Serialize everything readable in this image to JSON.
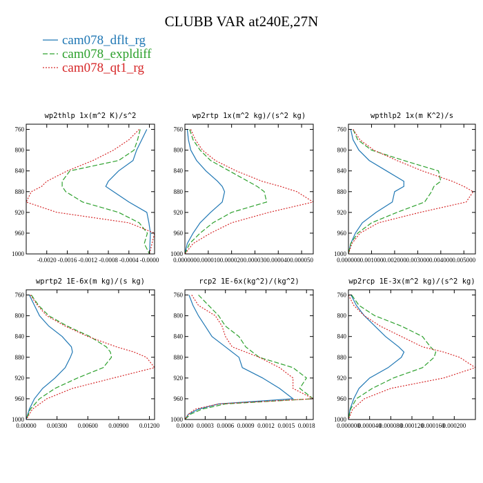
{
  "figure": {
    "title": "CLUBB VAR at240E,27N",
    "legend": [
      {
        "label": "cam078_dflt_rg",
        "color": "#1f77b4",
        "dash": "solid"
      },
      {
        "label": "cam078_expldiff",
        "color": "#2ca02c",
        "dash": "dashed"
      },
      {
        "label": "cam078_qt1_rg",
        "color": "#d62728",
        "dash": "dotted"
      }
    ]
  },
  "chart_data": [
    {
      "type": "line",
      "title": "wp2thlp  1x(m^2 K)/s^2",
      "xlim": [
        -0.0024,
        0.0001
      ],
      "ylim": [
        1000,
        750
      ],
      "x_ticks": [
        "-0.0020",
        "-0.0016",
        "-0.0012",
        "-0.0008",
        "-0.0004",
        "-0.0000"
      ],
      "x_tick_values": [
        -0.002,
        -0.0016,
        -0.0012,
        -0.0008,
        -0.0004,
        0.0
      ],
      "y": [
        760,
        780,
        800,
        820,
        840,
        860,
        870,
        880,
        900,
        920,
        940,
        960,
        980,
        1000
      ],
      "y_ticks": [
        "760",
        "800",
        "840",
        "880",
        "920",
        "960",
        "1000"
      ],
      "series": [
        {
          "name": "cam078_dflt_rg",
          "values": [
            -5e-05,
            -0.00015,
            -0.00025,
            -0.00032,
            -0.0006,
            -0.0008,
            -0.00085,
            -0.0007,
            -0.0004,
            -5e-05,
            -1e-05,
            2e-05,
            1e-05,
            0.0
          ]
        },
        {
          "name": "cam078_expldiff",
          "values": [
            -0.00018,
            -0.00023,
            -0.0003,
            -0.0006,
            -0.00155,
            -0.0017,
            -0.0017,
            -0.00163,
            -0.0013,
            -0.0006,
            -0.0002,
            -4e-05,
            -0.0001,
            0.0
          ]
        },
        {
          "name": "cam078_qt1_rg",
          "values": [
            -0.0002,
            -0.0004,
            -0.0007,
            -0.0011,
            -0.0016,
            -0.002,
            -0.0021,
            -0.0023,
            -0.0024,
            -0.0018,
            -0.0004,
            0.0001,
            5e-05,
            0.0
          ]
        }
      ]
    },
    {
      "type": "line",
      "title": "wp2rtp  1x(m^2 kg)/(s^2 kg)",
      "xlim": [
        0.0,
        5.5e-05
      ],
      "ylim": [
        1000,
        750
      ],
      "x_ticks": [
        "0.000000",
        "0.000010",
        "0.000020",
        "0.000030",
        "0.000040",
        "0.000050"
      ],
      "x_tick_values": [
        0.0,
        1e-05,
        2e-05,
        3e-05,
        4e-05,
        5e-05
      ],
      "y": [
        760,
        780,
        800,
        820,
        840,
        860,
        870,
        880,
        900,
        920,
        940,
        960,
        980,
        1000
      ],
      "y_ticks": [
        "760",
        "800",
        "840",
        "880",
        "920",
        "960",
        "1000"
      ],
      "series": [
        {
          "name": "cam078_dflt_rg",
          "values": [
            1e-06,
            1.5e-06,
            2.5e-06,
            5e-06,
            9e-06,
            1.4e-05,
            1.6e-05,
            1.7e-05,
            1.6e-05,
            1.1e-05,
            6.5e-06,
            3.5e-06,
            1e-06,
            0.0
          ]
        },
        {
          "name": "cam078_expldiff",
          "values": [
            2e-06,
            3.5e-06,
            6.5e-06,
            1.1e-05,
            1.9e-05,
            2.7e-05,
            3.1e-05,
            3.4e-05,
            3.5e-05,
            2e-05,
            1.2e-05,
            6.5e-06,
            2e-06,
            0.0
          ]
        },
        {
          "name": "cam078_qt1_rg",
          "values": [
            2.5e-06,
            4.5e-06,
            7.5e-06,
            1.3e-05,
            2.2e-05,
            3.3e-05,
            4.1e-05,
            4.8e-05,
            5.5e-05,
            3.6e-05,
            2e-05,
            1.1e-05,
            3.5e-06,
            0.0
          ]
        }
      ]
    },
    {
      "type": "line",
      "title": "wpthlp2  1x(m K^2)/s",
      "xlim": [
        0.0,
        0.0055
      ],
      "ylim": [
        1000,
        750
      ],
      "x_ticks": [
        "0.000000",
        "0.001000",
        "0.002000",
        "0.003000",
        "0.004000",
        "0.005000"
      ],
      "x_tick_values": [
        0.0,
        0.001,
        0.002,
        0.003,
        0.004,
        0.005
      ],
      "y": [
        760,
        780,
        800,
        820,
        840,
        860,
        870,
        880,
        900,
        920,
        940,
        960,
        980,
        1000
      ],
      "y_ticks": [
        "760",
        "800",
        "840",
        "880",
        "920",
        "960",
        "1000"
      ],
      "series": [
        {
          "name": "cam078_dflt_rg",
          "values": [
            0.0001,
            0.0002,
            0.00045,
            0.0009,
            0.00165,
            0.0024,
            0.0024,
            0.002,
            0.0019,
            0.0012,
            0.0006,
            0.0003,
            0.0001,
            0.0
          ]
        },
        {
          "name": "cam078_expldiff",
          "values": [
            0.0002,
            0.0004,
            0.001,
            0.0024,
            0.0039,
            0.004,
            0.0037,
            0.0036,
            0.0033,
            0.0021,
            0.001,
            0.0004,
            0.0001,
            0.0
          ]
        },
        {
          "name": "cam078_qt1_rg",
          "values": [
            0.0002,
            0.0005,
            0.0011,
            0.0021,
            0.0032,
            0.0045,
            0.005,
            0.0054,
            0.0051,
            0.0031,
            0.0013,
            0.0005,
            0.00015,
            0.0
          ]
        }
      ]
    },
    {
      "type": "line",
      "title": "wprtp2  1E-6x(m kg)/(s kg)",
      "xlim": [
        0.0,
        0.0125
      ],
      "ylim": [
        1000,
        750
      ],
      "x_ticks": [
        "0.00000",
        "0.00300",
        "0.00600",
        "0.00900",
        "0.01200"
      ],
      "x_tick_values": [
        0.0,
        0.003,
        0.006,
        0.009,
        0.012
      ],
      "y": [
        760,
        780,
        800,
        820,
        840,
        860,
        870,
        880,
        900,
        920,
        940,
        960,
        980,
        1000
      ],
      "y_ticks": [
        "760",
        "800",
        "840",
        "880",
        "920",
        "960",
        "1000"
      ],
      "series": [
        {
          "name": "cam078_dflt_rg",
          "values": [
            0.0003,
            0.0008,
            0.0013,
            0.0022,
            0.0035,
            0.0044,
            0.0045,
            0.0043,
            0.0038,
            0.0028,
            0.0016,
            0.0008,
            0.0003,
            0.0
          ]
        },
        {
          "name": "cam078_expldiff",
          "values": [
            0.0005,
            0.0012,
            0.0022,
            0.004,
            0.0062,
            0.0078,
            0.0082,
            0.0083,
            0.0075,
            0.005,
            0.0028,
            0.0013,
            0.0004,
            0.0
          ]
        },
        {
          "name": "cam078_qt1_rg",
          "values": [
            0.0004,
            0.0011,
            0.002,
            0.0038,
            0.006,
            0.0088,
            0.0105,
            0.0117,
            0.0125,
            0.0085,
            0.0045,
            0.002,
            0.0006,
            0.0
          ]
        }
      ]
    },
    {
      "type": "line",
      "title": "rcp2  1E-6x(kg^2)/(kg^2)",
      "xlim": [
        0.0,
        0.0019
      ],
      "ylim": [
        1000,
        750
      ],
      "x_ticks": [
        "0.0000",
        "0.0003",
        "0.0006",
        "0.0009",
        "0.0012",
        "0.0015",
        "0.0018"
      ],
      "x_tick_values": [
        0.0,
        0.0003,
        0.0006,
        0.0009,
        0.0012,
        0.0015,
        0.0018
      ],
      "y": [
        760,
        780,
        800,
        820,
        840,
        860,
        880,
        900,
        920,
        940,
        960,
        970,
        980,
        990,
        1000
      ],
      "y_ticks": [
        "760",
        "800",
        "840",
        "880",
        "920",
        "960",
        "1000"
      ],
      "series": [
        {
          "name": "cam078_dflt_rg",
          "values": [
            6e-05,
            0.00012,
            0.0002,
            0.0003,
            0.0004,
            0.0006,
            0.0008,
            0.00085,
            0.00115,
            0.0014,
            0.0016,
            0.0005,
            0.0002,
            5e-05,
            0.0
          ]
        },
        {
          "name": "cam078_expldiff",
          "values": [
            0.0002,
            0.00035,
            0.0005,
            0.0006,
            0.0008,
            0.0009,
            0.0011,
            0.0016,
            0.0018,
            0.0017,
            0.0019,
            0.0006,
            0.00025,
            8e-05,
            0.0
          ]
        },
        {
          "name": "cam078_qt1_rg",
          "values": [
            0.0001,
            0.0002,
            0.00045,
            0.00055,
            0.0006,
            0.0007,
            0.0011,
            0.0014,
            0.0016,
            0.0016,
            0.0019,
            0.0005,
            0.00015,
            5e-05,
            0.0
          ]
        }
      ]
    },
    {
      "type": "line",
      "title": "wp2rcp  1E-3x(m^2 kg)/(s^2 kg)",
      "xlim": [
        0.0,
        0.00024
      ],
      "ylim": [
        1000,
        750
      ],
      "x_ticks": [
        "0.000000",
        "0.000040",
        "0.000080",
        "0.000120",
        "0.000160",
        "0.000200"
      ],
      "x_tick_values": [
        0.0,
        4e-05,
        8e-05,
        0.00012,
        0.00016,
        0.0002
      ],
      "y": [
        760,
        780,
        800,
        820,
        840,
        860,
        870,
        880,
        900,
        920,
        940,
        960,
        980,
        1000
      ],
      "y_ticks": [
        "760",
        "800",
        "840",
        "880",
        "920",
        "960",
        "1000"
      ],
      "series": [
        {
          "name": "cam078_dflt_rg",
          "values": [
            5e-06,
            1.5e-05,
            3e-05,
            5e-05,
            7e-05,
            9.5e-05,
            0.000105,
            0.0001,
            7.5e-05,
            4e-05,
            2e-05,
            1e-05,
            3e-06,
            0.0
          ]
        },
        {
          "name": "cam078_expldiff",
          "values": [
            6e-06,
            2e-05,
            5e-05,
            0.0001,
            0.00014,
            0.000155,
            0.000165,
            0.000162,
            0.00014,
            8.5e-05,
            4.5e-05,
            1.5e-05,
            4e-06,
            0.0
          ]
        },
        {
          "name": "cam078_qt1_rg",
          "values": [
            0.0,
            1e-05,
            3e-05,
            6e-05,
            0.0001,
            0.00014,
            0.00018,
            0.00021,
            0.00024,
            0.00018,
            8e-05,
            3e-05,
            8e-06,
            0.0
          ]
        }
      ]
    }
  ]
}
